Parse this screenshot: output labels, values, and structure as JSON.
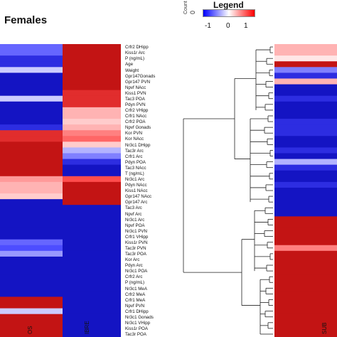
{
  "title": "Females",
  "legend": {
    "title": "Legend",
    "count_label": "Count",
    "count_value": "0",
    "ticks": [
      "-1",
      "0",
      "1"
    ],
    "colors": {
      "low": "#0000ff",
      "mid": "#ffffff",
      "high": "#ff0000"
    }
  },
  "chart_data": {
    "type": "heatmap",
    "title": "Females",
    "row_labels": [
      "Crfr2 DHipp",
      "Kiss1r Arc",
      "P (ng/mL)",
      "Age",
      "Weight",
      "Gpr147Gonads",
      "Gpr147 PVN",
      "Npvf NAcc",
      "Kiss1 PVN",
      "Tac3 POA",
      "Pdyn PVN",
      "Crfr2 VHipp",
      "Crfr1 NAcc",
      "Crfr2 POA",
      "Npvf Gonads",
      "Kor PVN",
      "Kor NAcc",
      "Nr3c1 DHipp",
      "Tac3r Arc",
      "Crfr1 Arc",
      "Pdyn POA",
      "Tac3 NAcc",
      "T (ng/mL)",
      "Nr3c1 Arc",
      "Pdyn NAcc",
      "Kiss1 NAcc",
      "Gpr147 NAcc",
      "Gpr147 Arc",
      "Tac3 Arc",
      "Npvf Arc",
      "Nr3c1 Arc",
      "Npvf POA",
      "Nr3c1 PVN",
      "Crfr1 VHipp",
      "Kiss1r PVN",
      "Tac3r PVN",
      "Tac3r POA",
      "Kor Arc",
      "Pdyn Arc",
      "Nr3c1 POA",
      "Crfr2 Arc",
      "P (ng/mL)",
      "Nr3c1 MeA",
      "Crfr2 MeA",
      "Crfr1 MeA",
      "Npvf PVN",
      "Crfr1 DHipp",
      "Nr3c1 Gonads",
      "Nr3c1 VHipp",
      "Kiss1r POA",
      "Tac3r POA"
    ],
    "columns": [
      "OS",
      "IBRE",
      "SUB"
    ],
    "value_range": [
      -1,
      1
    ],
    "values": [
      [
        -0.6,
        0.9,
        0.3
      ],
      [
        -0.6,
        0.9,
        0.3
      ],
      [
        -0.8,
        0.9,
        0.1
      ],
      [
        -0.8,
        0.9,
        0.9
      ],
      [
        -0.2,
        0.9,
        -0.5
      ],
      [
        -0.9,
        0.9,
        -0.8
      ],
      [
        -0.9,
        0.9,
        0.3
      ],
      [
        -0.9,
        0.9,
        -0.9
      ],
      [
        -0.9,
        0.8,
        -0.9
      ],
      [
        -0.2,
        0.8,
        -0.8
      ],
      [
        -0.9,
        0.8,
        -0.9
      ],
      [
        -0.9,
        0.3,
        -0.9
      ],
      [
        -0.9,
        0.3,
        -0.9
      ],
      [
        -0.9,
        0.2,
        -0.8
      ],
      [
        -0.8,
        0.3,
        -0.8
      ],
      [
        0.8,
        0.5,
        -0.8
      ],
      [
        0.8,
        0.6,
        -0.9
      ],
      [
        0.9,
        0.2,
        -0.9
      ],
      [
        0.9,
        -0.3,
        -0.8
      ],
      [
        0.9,
        -0.5,
        -0.9
      ],
      [
        0.9,
        -0.8,
        -0.3
      ],
      [
        0.9,
        -0.9,
        -0.8
      ],
      [
        0.9,
        -0.9,
        -0.9
      ],
      [
        0.4,
        0.7,
        -0.9
      ],
      [
        0.3,
        0.9,
        -0.8
      ],
      [
        0.3,
        0.9,
        -0.9
      ],
      [
        0.2,
        0.9,
        -0.9
      ],
      [
        -0.9,
        0.9,
        -0.9
      ],
      [
        -0.9,
        -0.9,
        -0.9
      ],
      [
        -0.9,
        -0.9,
        -0.9
      ],
      [
        -0.9,
        -0.9,
        0.9
      ],
      [
        -0.9,
        -0.9,
        0.9
      ],
      [
        -0.9,
        -0.9,
        0.9
      ],
      [
        -0.9,
        -0.9,
        0.9
      ],
      [
        -0.6,
        -0.9,
        0.9
      ],
      [
        -0.7,
        -0.9,
        0.5
      ],
      [
        -0.4,
        -0.9,
        0.9
      ],
      [
        -0.9,
        -0.9,
        0.9
      ],
      [
        -0.9,
        -0.9,
        0.9
      ],
      [
        -0.9,
        -0.9,
        0.9
      ],
      [
        -0.9,
        -0.9,
        0.9
      ],
      [
        -0.9,
        -0.9,
        0.9
      ],
      [
        -0.9,
        -0.9,
        0.9
      ],
      [
        -0.9,
        -0.9,
        0.9
      ],
      [
        0.9,
        -0.9,
        0.9
      ],
      [
        0.9,
        -0.9,
        0.9
      ],
      [
        -0.2,
        -0.9,
        0.9
      ],
      [
        0.9,
        -0.9,
        0.9
      ],
      [
        0.9,
        -0.9,
        0.9
      ],
      [
        0.9,
        -0.9,
        0.9
      ],
      [
        0.9,
        -0.9,
        0.9
      ]
    ],
    "legend_position": "top-center",
    "grid": false
  }
}
